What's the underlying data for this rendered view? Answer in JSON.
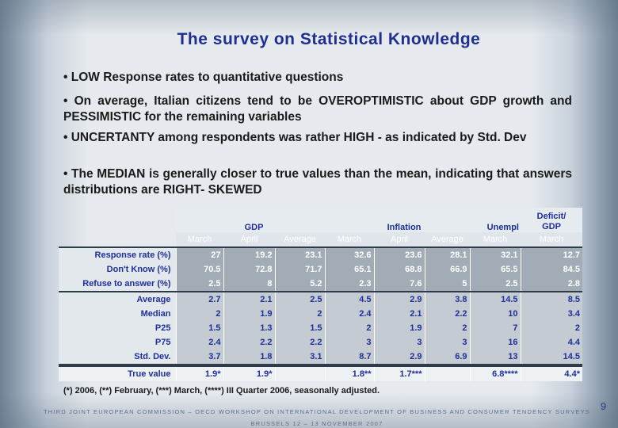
{
  "title": "The survey on Statistical Knowledge",
  "bullets": [
    "• LOW Response rates to quantitative questions",
    "• On average, Italian citizens tend to be OVEROPTIMISTIC about GDP growth and PESSIMISTIC for the remaining variables",
    "• UNCERTANTY among respondents was rather HIGH - as indicated by Std. Dev",
    "• The MEDIAN is generally closer to true values than the mean, indicating that answers distributions are RIGHT- SKEWED"
  ],
  "table": {
    "groups": [
      "GDP",
      "Inflation",
      "Unempl",
      "Deficit/ GDP"
    ],
    "subheaders": [
      "March",
      "April",
      "Average",
      "March",
      "April",
      "Average",
      "March",
      "March"
    ],
    "response_rows": [
      {
        "label": "Response rate  (%)",
        "values": [
          "27",
          "19.2",
          "23.1",
          "32.6",
          "23.6",
          "28.1",
          "32.1",
          "12.7"
        ]
      },
      {
        "label": "Don't Know  (%)",
        "values": [
          "70.5",
          "72.8",
          "71.7",
          "65.1",
          "68.8",
          "66.9",
          "65.5",
          "84.5"
        ]
      },
      {
        "label": "Refuse to answer  (%)",
        "values": [
          "2.5",
          "8",
          "5.2",
          "2.3",
          "7.6",
          "5",
          "2.5",
          "2.8"
        ]
      }
    ],
    "stat_rows": [
      {
        "label": "Average",
        "values": [
          "2.7",
          "2.1",
          "2.5",
          "4.5",
          "2.9",
          "3.8",
          "14.5",
          "8.5"
        ]
      },
      {
        "label": "Median",
        "values": [
          "2",
          "1.9",
          "2",
          "2.4",
          "2.1",
          "2.2",
          "10",
          "3.4"
        ]
      },
      {
        "label": "P25",
        "values": [
          "1.5",
          "1.3",
          "1.5",
          "2",
          "1.9",
          "2",
          "7",
          "2"
        ]
      },
      {
        "label": "P75",
        "values": [
          "2.4",
          "2.2",
          "2.2",
          "3",
          "3",
          "3",
          "16",
          "4.4"
        ]
      },
      {
        "label": "Std. Dev.",
        "values": [
          "3.7",
          "1.8",
          "3.1",
          "8.7",
          "2.9",
          "6.9",
          "13",
          "14.5"
        ]
      }
    ],
    "true_value": {
      "label": "True value",
      "values": [
        "1.9*",
        "1.9*",
        "",
        "1.8**",
        "1.7***",
        "",
        "6.8****",
        "4.4*"
      ]
    }
  },
  "footnote": "(*) 2006, (**) February, (***) March, (****) III Quarter 2006, seasonally adjusted.",
  "footer_line1": "THIRD JOINT EUROPEAN COMMISSION – OECD WORKSHOP ON INTERNATIONAL DEVELOPMENT OF BUSINESS AND CONSUMER TENDENCY SURVEYS",
  "footer_line2": "BRUSSELS   12 – 13 NOVEMBER 2007",
  "page_number": "9"
}
